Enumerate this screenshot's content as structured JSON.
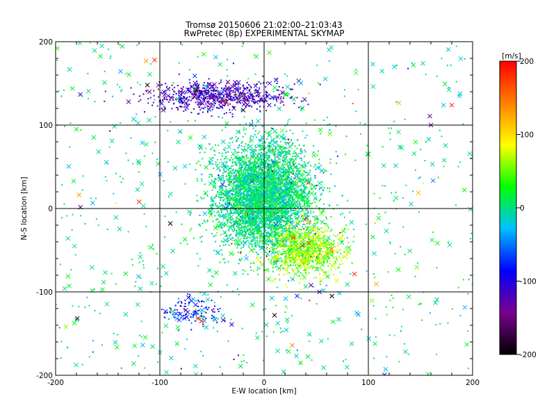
{
  "chart_data": {
    "type": "scatter",
    "title": "Tromsø 20150606 21:02:00–21:03:43",
    "subtitle": "RwPretec (8p) EXPERIMENTAL SKYMAP",
    "xlabel": "E-W location [km]",
    "ylabel": "N-S location [km]",
    "xlim": [
      -200,
      200
    ],
    "ylim": [
      -200,
      200
    ],
    "x_ticks": [
      "-200",
      "-100",
      "0",
      "100",
      "200"
    ],
    "y_ticks": [
      "-200",
      "-100",
      "0",
      "100",
      "200"
    ],
    "x_tick_values": [
      -200,
      -100,
      0,
      100,
      200
    ],
    "y_tick_values": [
      -200,
      -100,
      0,
      100,
      200
    ],
    "grid": true,
    "colorbar": {
      "label": "[m/s]",
      "min": -200,
      "max": 200,
      "ticks": [
        "200",
        "100",
        "0",
        "-100",
        "-200"
      ],
      "tick_values": [
        200,
        100,
        0,
        -100,
        -200
      ],
      "colormap": [
        "#000000",
        "#7a0090",
        "#0000ff",
        "#00bfff",
        "#00ff00",
        "#ffff00",
        "#ff8000",
        "#ff0000"
      ]
    },
    "markers": [
      "dot",
      "cross"
    ],
    "clusters": [
      {
        "region": "central",
        "x_center": 0,
        "y_center": 15,
        "x_spread": 40,
        "y_spread": 55,
        "dominant_velocity": 0
      },
      {
        "region": "north",
        "x_center": -45,
        "y_center": 135,
        "x_spread": 60,
        "y_spread": 15,
        "dominant_velocity": -120
      },
      {
        "region": "south",
        "x_center": -70,
        "y_center": -125,
        "x_spread": 25,
        "y_spread": 15,
        "dominant_velocity": -80
      },
      {
        "region": "south-east",
        "x_center": 40,
        "y_center": -50,
        "x_spread": 30,
        "y_spread": 25,
        "dominant_velocity": 60
      }
    ],
    "sample_points": [
      {
        "x": -105,
        "y": 178,
        "v": 180,
        "marker": "cross"
      },
      {
        "x": -112,
        "y": 148,
        "v": -200,
        "marker": "cross"
      },
      {
        "x": -110,
        "y": 140,
        "v": -140,
        "marker": "cross"
      },
      {
        "x": -130,
        "y": 128,
        "v": -130,
        "marker": "cross"
      },
      {
        "x": -65,
        "y": 142,
        "v": -190,
        "marker": "cross"
      },
      {
        "x": -50,
        "y": 147,
        "v": -110,
        "marker": "cross"
      },
      {
        "x": -37,
        "y": 128,
        "v": 170,
        "marker": "cross"
      },
      {
        "x": -20,
        "y": 118,
        "v": -200,
        "marker": "cross"
      },
      {
        "x": 180,
        "y": 124,
        "v": 190,
        "marker": "cross"
      },
      {
        "x": 160,
        "y": 100,
        "v": -130,
        "marker": "cross"
      },
      {
        "x": -120,
        "y": 8,
        "v": 180,
        "marker": "cross"
      },
      {
        "x": -90,
        "y": -18,
        "v": -200,
        "marker": "cross"
      },
      {
        "x": -60,
        "y": -135,
        "v": 190,
        "marker": "cross"
      },
      {
        "x": -63,
        "y": -132,
        "v": 180,
        "marker": "cross"
      },
      {
        "x": -75,
        "y": -122,
        "v": -120,
        "marker": "cross"
      },
      {
        "x": 65,
        "y": -105,
        "v": -200,
        "marker": "cross"
      },
      {
        "x": 28,
        "y": -35,
        "v": 180,
        "marker": "cross"
      },
      {
        "x": 45,
        "y": -92,
        "v": -130,
        "marker": "cross"
      },
      {
        "x": 10,
        "y": -128,
        "v": -200,
        "marker": "cross"
      },
      {
        "x": 125,
        "y": 170,
        "v": -30,
        "marker": "cross"
      },
      {
        "x": 5,
        "y": 187,
        "v": 40,
        "marker": "cross"
      },
      {
        "x": 100,
        "y": 65,
        "v": 30,
        "marker": "cross"
      },
      {
        "x": -180,
        "y": 95,
        "v": 20,
        "marker": "cross"
      },
      {
        "x": 35,
        "y": -185,
        "v": 30,
        "marker": "cross"
      }
    ]
  }
}
